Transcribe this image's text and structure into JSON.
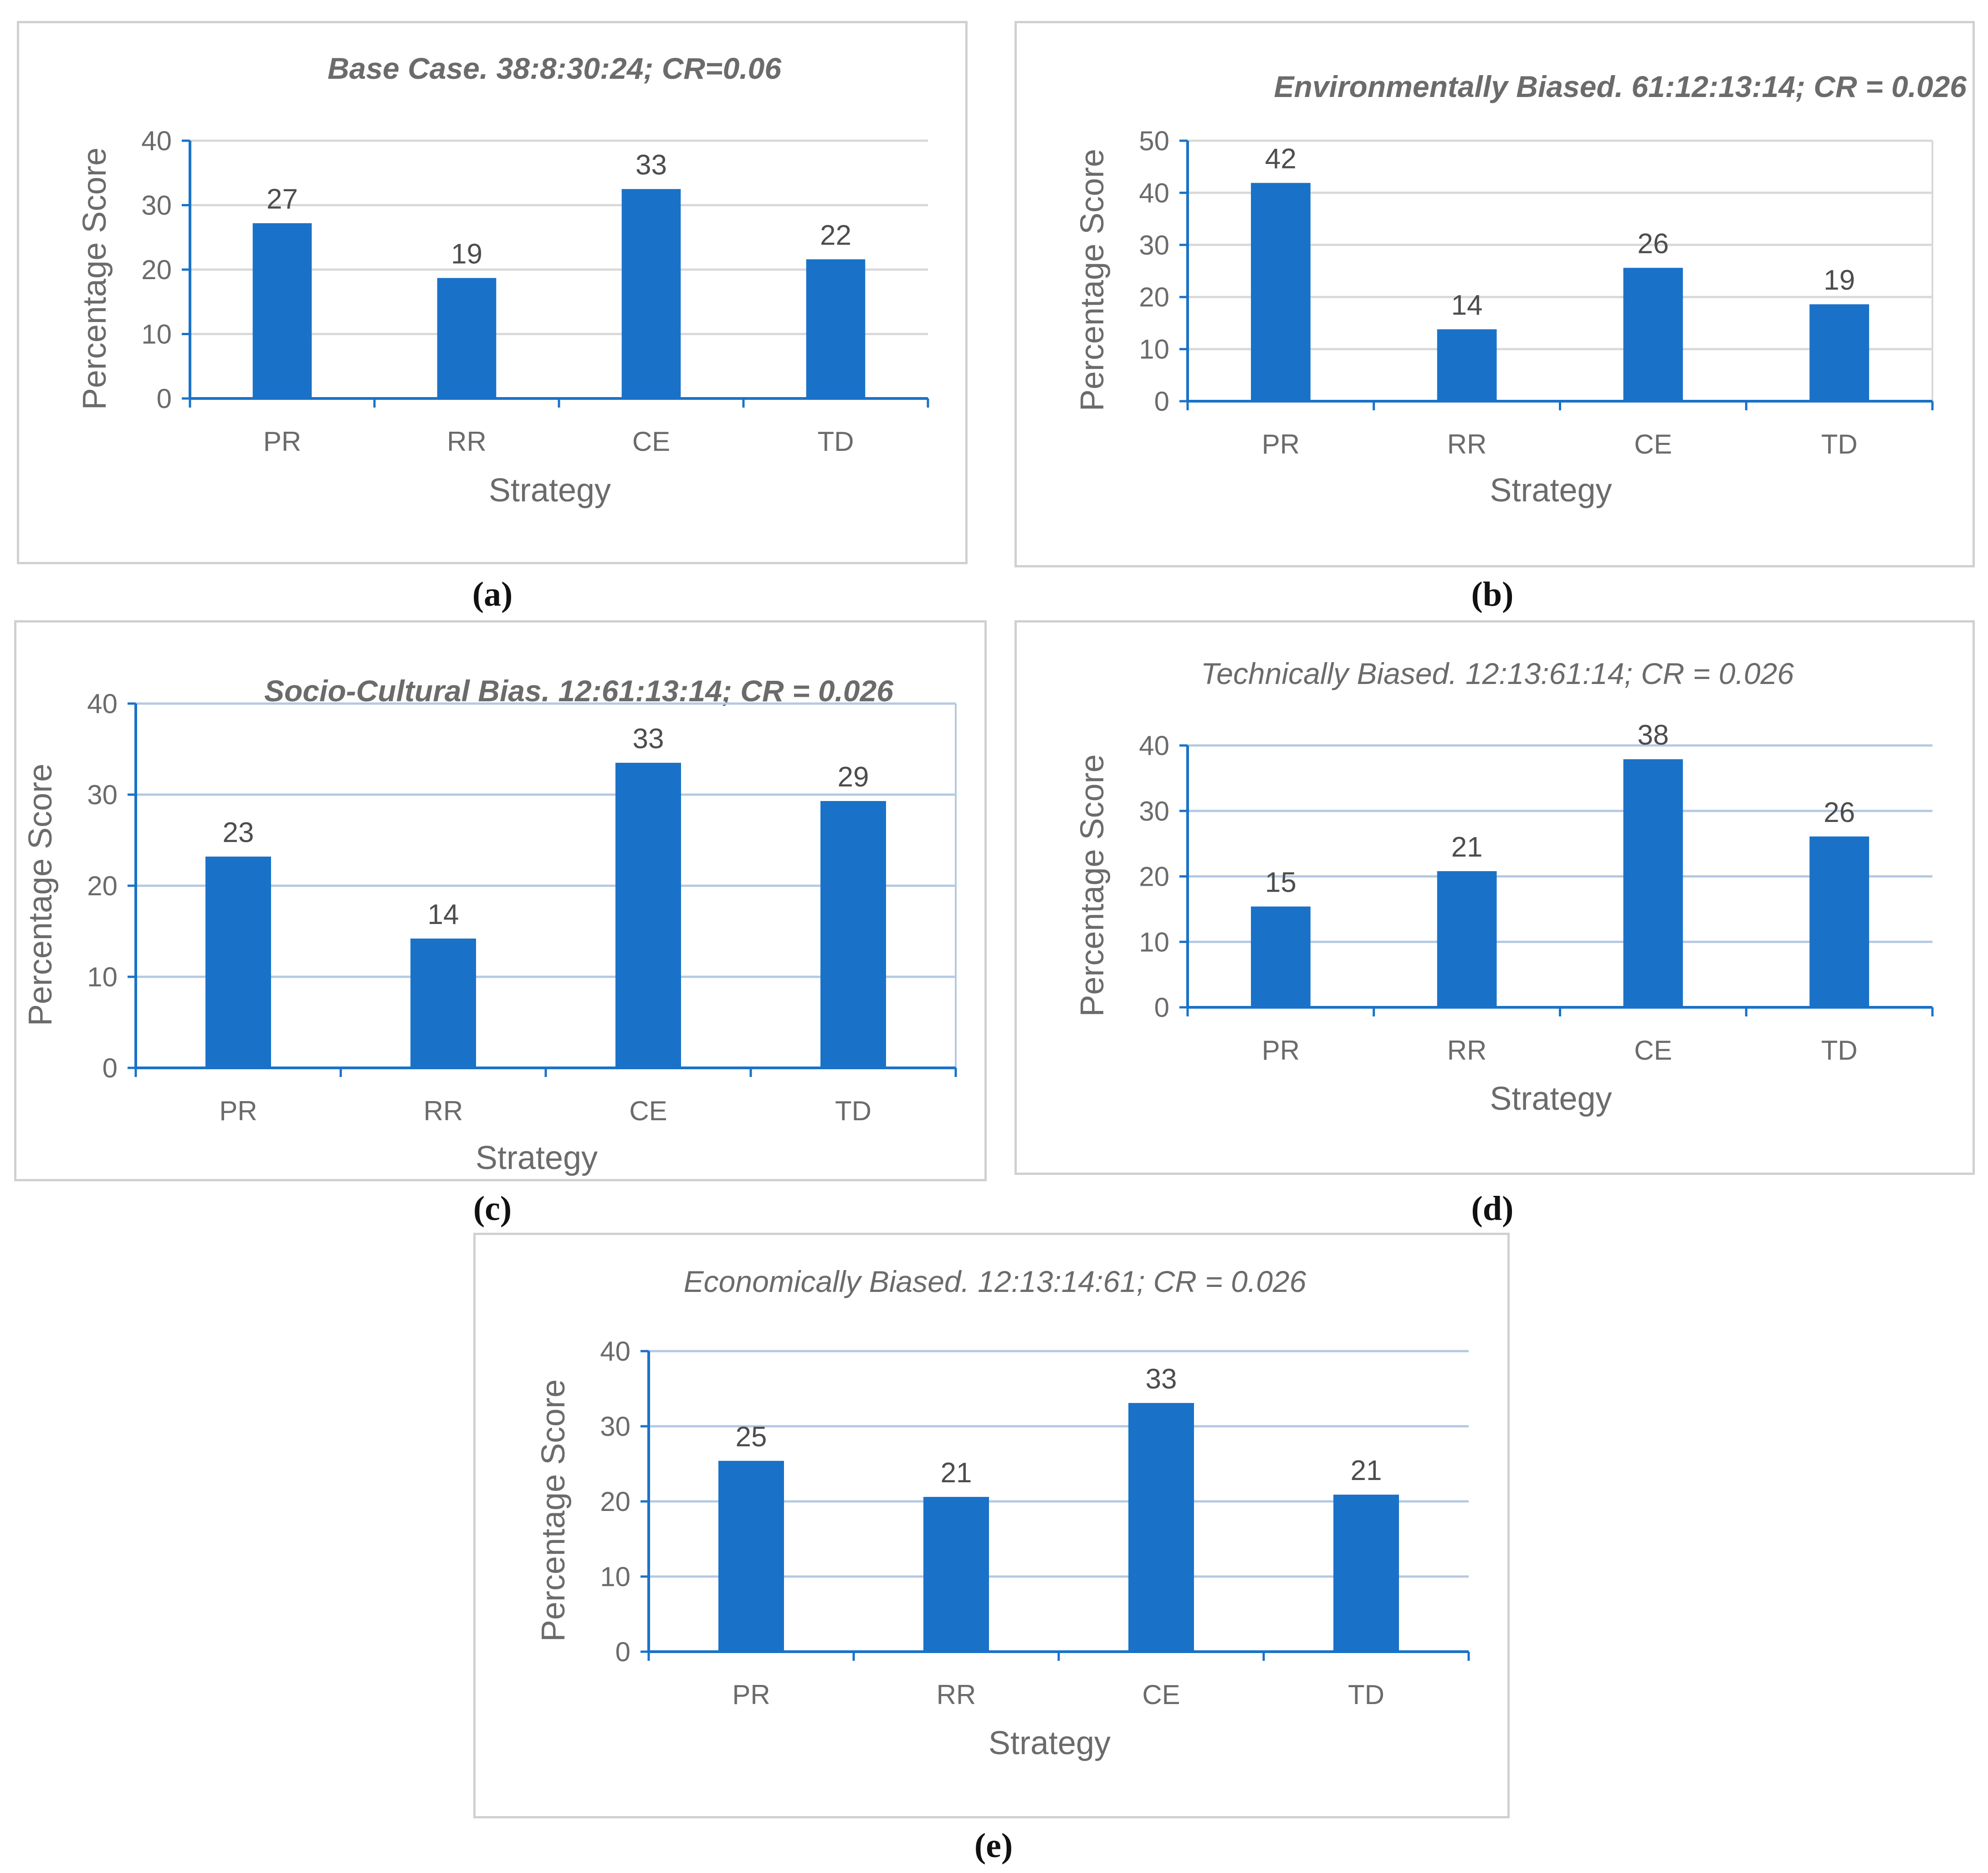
{
  "colors": {
    "bar": "#1a72c8",
    "axis": "#1a72c8",
    "grid": "#d9d9d9",
    "grid_blue": "#b4c9e2"
  },
  "chart_data": [
    {
      "id": "a",
      "type": "bar",
      "title": "Base Case. 38:8:30:24; CR=0.06",
      "categories": [
        "PR",
        "RR",
        "CE",
        "TD"
      ],
      "values": [
        27,
        19,
        33,
        22
      ],
      "bar_values": [
        27.2,
        18.7,
        32.5,
        21.6
      ],
      "yticks": [
        "0",
        "10",
        "20",
        "30",
        "40"
      ],
      "ylim": [
        0,
        40
      ],
      "xlabel": "Strategy",
      "ylabel": "Percentage Score"
    },
    {
      "id": "b",
      "type": "bar",
      "title": "Environmentally Biased. 61:12:13:14; CR = 0.026",
      "categories": [
        "PR",
        "RR",
        "CE",
        "TD"
      ],
      "values": [
        42,
        14,
        26,
        19
      ],
      "bar_values": [
        41.9,
        13.8,
        25.6,
        18.6
      ],
      "yticks": [
        "0",
        "10",
        "20",
        "30",
        "40",
        "50"
      ],
      "ylim": [
        0,
        50
      ],
      "xlabel": "Strategy",
      "ylabel": "Percentage Score"
    },
    {
      "id": "c",
      "type": "bar",
      "title": "Socio-Cultural Bias. 12:61:13:14; CR = 0.026",
      "categories": [
        "PR",
        "RR",
        "CE",
        "TD"
      ],
      "values": [
        23,
        14,
        33,
        29
      ],
      "bar_values": [
        23.2,
        14.2,
        33.5,
        29.3
      ],
      "yticks": [
        "0",
        "10",
        "20",
        "30",
        "40"
      ],
      "ylim": [
        0,
        40
      ],
      "xlabel": "Strategy",
      "ylabel": "Percentage Score"
    },
    {
      "id": "d",
      "type": "bar",
      "title": "Technically Biased. 12:13:61:14; CR = 0.026",
      "categories": [
        "PR",
        "RR",
        "CE",
        "TD"
      ],
      "values": [
        15,
        21,
        38,
        26
      ],
      "bar_values": [
        15.4,
        20.8,
        37.9,
        26.1
      ],
      "yticks": [
        "0",
        "10",
        "20",
        "30",
        "40"
      ],
      "ylim": [
        0,
        40
      ],
      "xlabel": "Strategy",
      "ylabel": "Percentage Score"
    },
    {
      "id": "e",
      "type": "bar",
      "title": "Economically Biased. 12:13:14:61; CR = 0.026",
      "categories": [
        "PR",
        "RR",
        "CE",
        "TD"
      ],
      "values": [
        25,
        21,
        33,
        21
      ],
      "bar_values": [
        25.4,
        20.6,
        33.1,
        20.9
      ],
      "yticks": [
        "0",
        "10",
        "20",
        "30",
        "40"
      ],
      "ylim": [
        0,
        40
      ],
      "xlabel": "Strategy",
      "ylabel": "Percentage Score"
    }
  ],
  "captions": [
    "(a)",
    "(b)",
    "(c)",
    "(d)",
    "(e)"
  ]
}
